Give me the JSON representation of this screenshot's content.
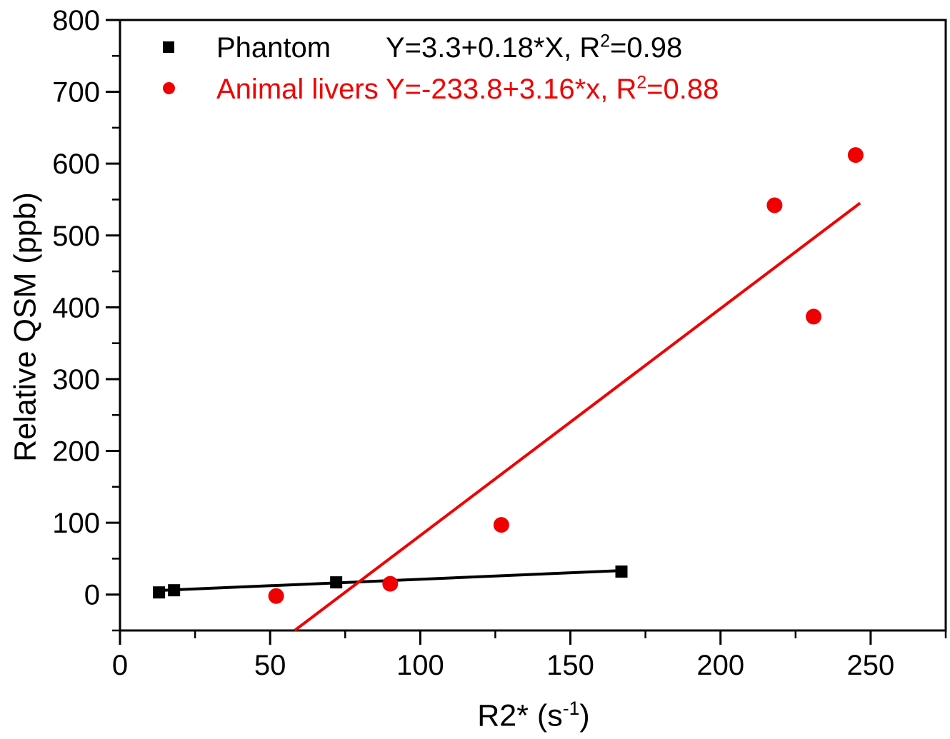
{
  "figure": {
    "background": "#ffffff",
    "text_color": "#000000"
  },
  "labels": {
    "x_title_pre": "R2* (s",
    "x_title_sup": "-1",
    "x_title_post": ")",
    "y_title": "Relative QSM (ppb)"
  },
  "chart_data": {
    "type": "scatter",
    "xlabel": "R2* (s^-1)",
    "ylabel": "Relative QSM (ppb)",
    "grid": false,
    "legend_position": "top-left-inside",
    "x_axis": {
      "min": 0,
      "max": 275,
      "major_ticks": [
        0,
        50,
        100,
        150,
        200,
        250
      ],
      "minor_ticks": [
        25,
        75,
        125,
        175,
        225,
        275
      ]
    },
    "y_axis": {
      "min": -50,
      "max": 800,
      "major_ticks": [
        0,
        100,
        200,
        300,
        400,
        500,
        600,
        700,
        800
      ],
      "minor_ticks": [
        -50,
        50,
        150,
        250,
        350,
        450,
        550,
        650,
        750
      ]
    },
    "series": [
      {
        "name": "Phantom",
        "marker": "square",
        "color": "#000000",
        "points": [
          [
            13,
            3
          ],
          [
            18,
            6
          ],
          [
            72,
            17
          ],
          [
            167,
            32
          ]
        ],
        "fit": {
          "intercept": 3.3,
          "slope": 0.18,
          "r2": 0.98,
          "x_range": [
            13,
            167
          ],
          "equation_pre": "Y=3.3+0.18*X, R",
          "equation_sup": "2",
          "equation_post": "=0.98"
        }
      },
      {
        "name": "Animal livers",
        "marker": "circle",
        "color": "#f00000",
        "points": [
          [
            52,
            -2
          ],
          [
            90,
            15
          ],
          [
            127,
            97
          ],
          [
            218,
            542
          ],
          [
            231,
            387
          ],
          [
            245,
            612
          ]
        ],
        "fit": {
          "intercept": -233.8,
          "slope": 3.16,
          "r2": 0.88,
          "x_range": [
            58.2,
            246.5
          ],
          "equation_pre": "Y=-233.8+3.16*x, R",
          "equation_sup": "2",
          "equation_post": "=0.88"
        }
      }
    ]
  }
}
